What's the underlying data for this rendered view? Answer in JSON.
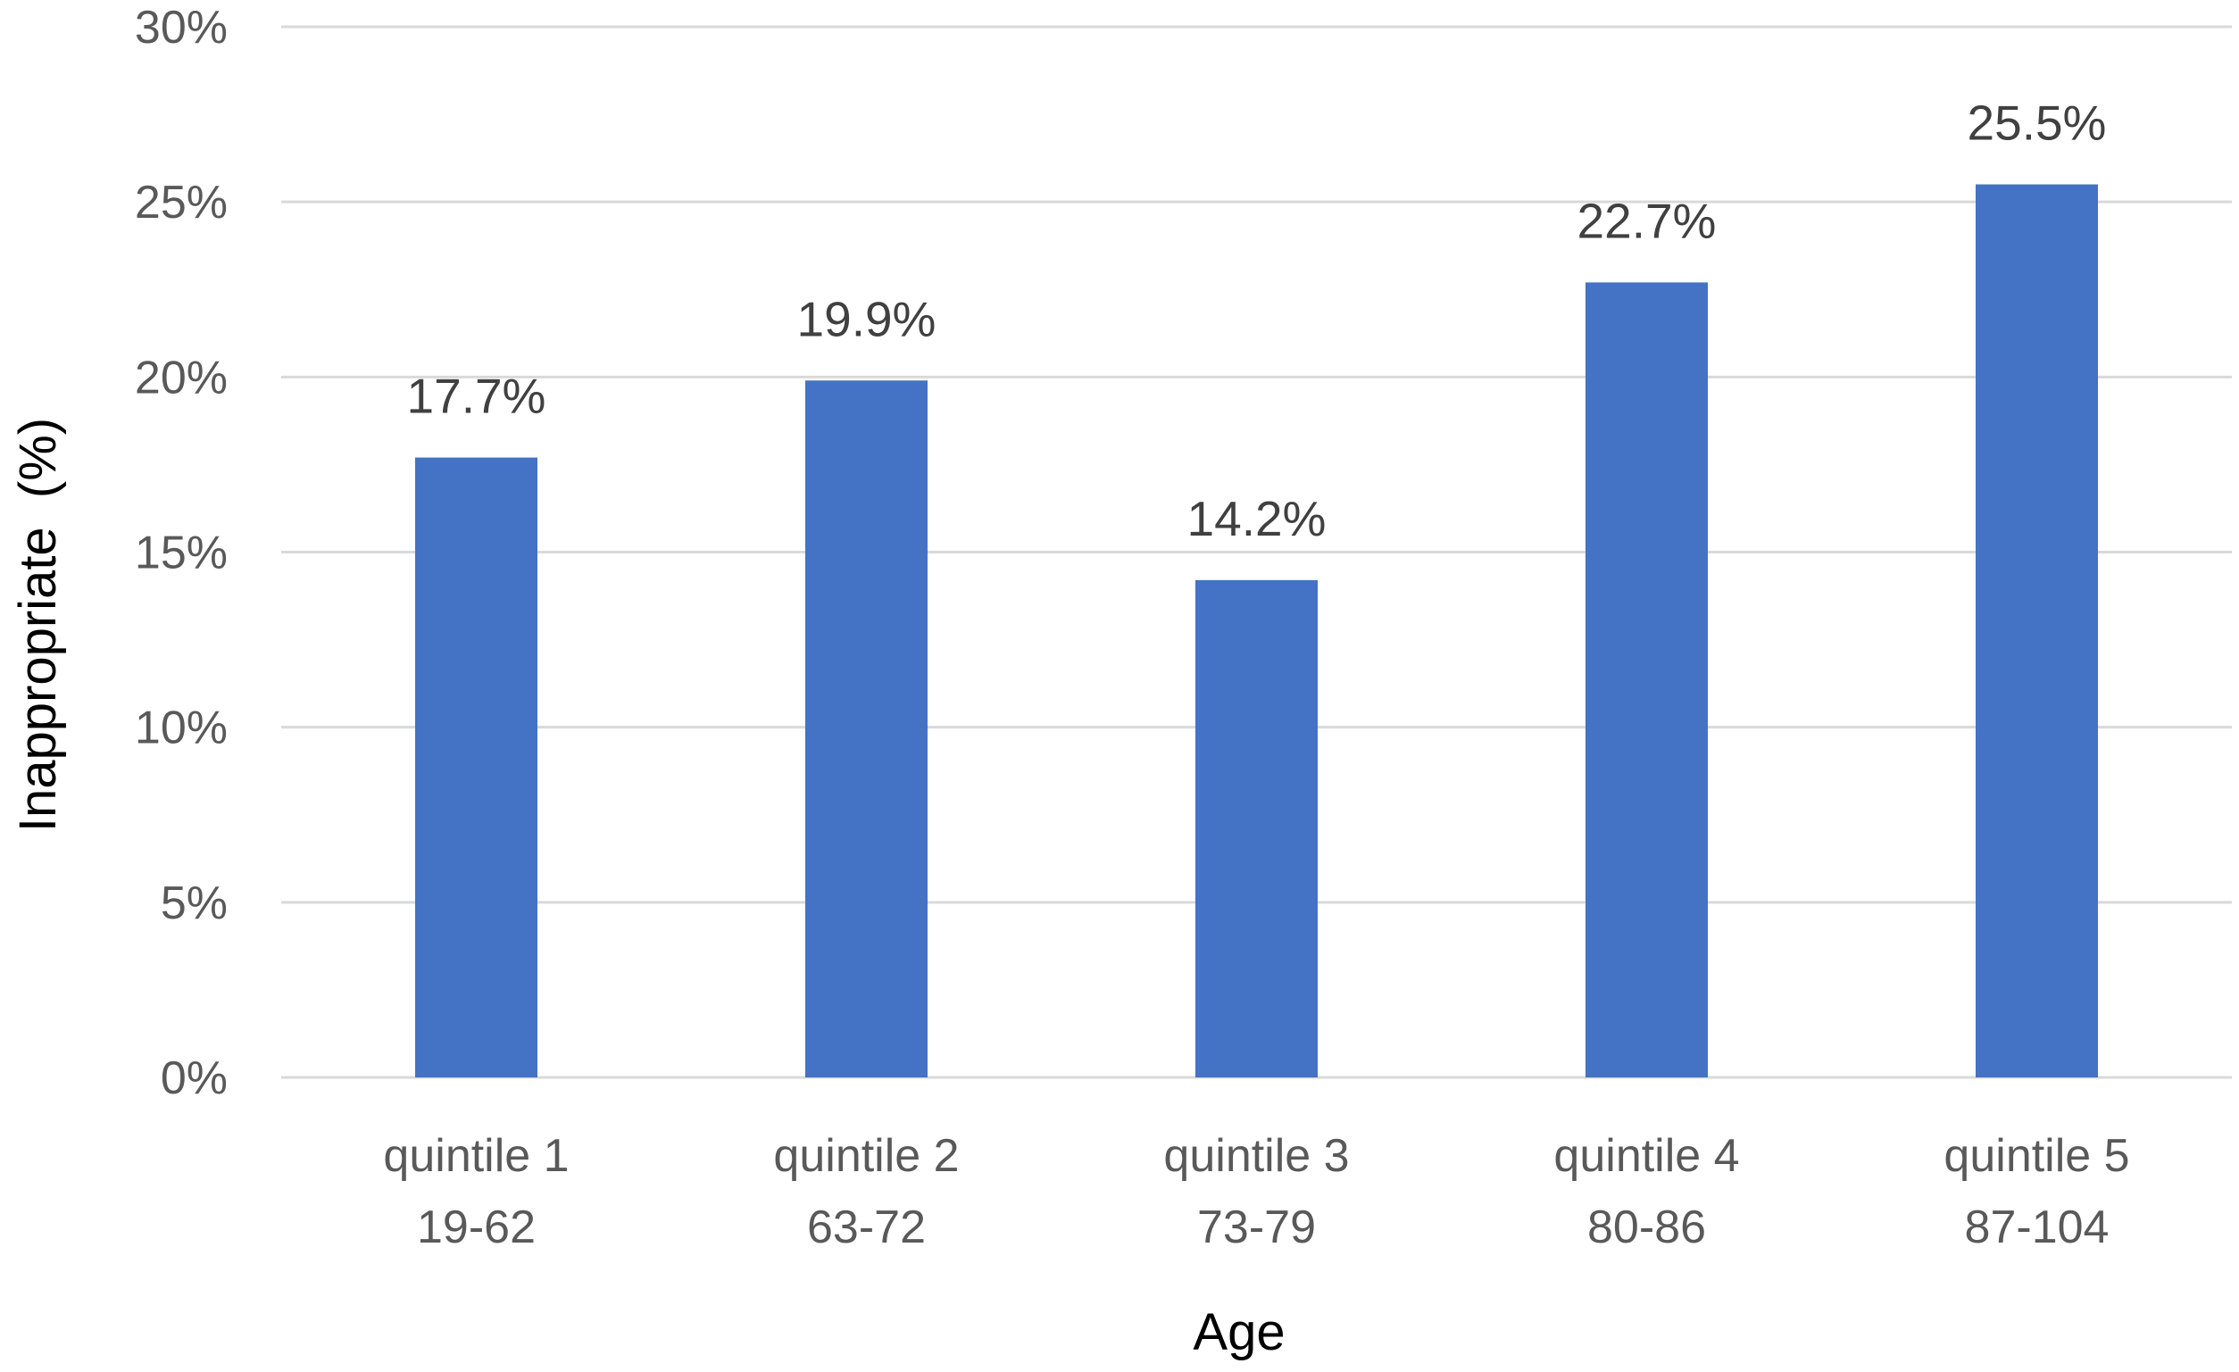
{
  "chart_data": {
    "type": "bar",
    "xlabel": "Age",
    "ylabel": "Inappropriate  (%)",
    "categories": [
      [
        "quintile 1",
        "19-62"
      ],
      [
        "quintile 2",
        "63-72"
      ],
      [
        "quintile 3",
        "73-79"
      ],
      [
        "quintile 4",
        "80-86"
      ],
      [
        "quintile 5",
        "87-104"
      ]
    ],
    "values": [
      17.7,
      19.9,
      14.2,
      22.7,
      25.5
    ],
    "data_labels": [
      "17.7%",
      "19.9%",
      "14.2%",
      "22.7%",
      "25.5%"
    ],
    "ylim": [
      0,
      30
    ],
    "yticks": [
      0,
      5,
      10,
      15,
      20,
      25,
      30
    ],
    "ytick_labels": [
      "0%",
      "5%",
      "10%",
      "15%",
      "20%",
      "25%",
      "30%"
    ],
    "grid": true,
    "legend": "none",
    "colors": {
      "bar": "#4472C4",
      "grid": "#D9D9D9",
      "tick_text": "#595959",
      "label_text": "#404040"
    }
  }
}
